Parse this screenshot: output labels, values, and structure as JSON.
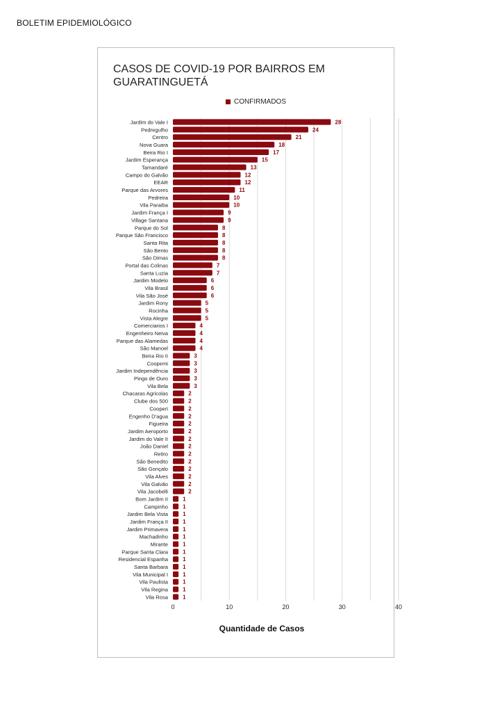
{
  "document": {
    "header": "BOLETIM EPIDEMIOLÓGICO"
  },
  "colors": {
    "bar": "#8b0a10",
    "bar_label": "#8b0a10",
    "grid": "#d9d9d9",
    "text": "#222222"
  },
  "chart_data": {
    "type": "bar",
    "orientation": "horizontal",
    "title": "CASOS DE COVID-19 POR BAIRROS EM GUARATINGUETÁ",
    "legend": {
      "position": "top",
      "entries": [
        "CONFIRMADOS"
      ]
    },
    "xlabel": "Quantidade de Casos",
    "ylabel": "",
    "xlim": [
      0,
      40
    ],
    "xticks": [
      0,
      10,
      20,
      30,
      40
    ],
    "grid": true,
    "data_labels": true,
    "categories": [
      "Jardim do Vale I",
      "Pedregulho",
      "Centro",
      "Nova Guara",
      "Beira Rio I",
      "Jardim Esperança",
      "Tamandaré",
      "Campo do Galvão",
      "EEAR",
      "Parque das Arvores",
      "Pedreira",
      "Vila Paraiba",
      "Jardim França I",
      "Village Santana",
      "Parque do Sol",
      "Parque São Francisco",
      "Santa Rita",
      "São Bento",
      "São Dimas",
      "Portal das Colinas",
      "Santa Luzia",
      "Jardim Modelo",
      "Vila Brasil",
      "Vila São José",
      "Jardim Rony",
      "Rocinha",
      "Vista Alegre",
      "Comerciarios I",
      "Engenheiro Neiva",
      "Parque das Alamedas",
      "São Manoel",
      "Beira Rio II",
      "Coopemi",
      "Jardim Independência",
      "Pingo de Ouro",
      "Vila Bela",
      "Chacaras Agricolas",
      "Clube dos 500",
      "Cooperi",
      "Engenho D'agua",
      "Figueira",
      "Jardim Aeroporto",
      "Jardim do Vale II",
      "João Daniel",
      "Retiro",
      "São Benedito",
      "São Gonçalo",
      "Vila Alves",
      "Vila Galvão",
      "Vila Jacobelli",
      "Bom Jardim II",
      "Campinho",
      "Jardim Bela Vista",
      "Jardim França II",
      "Jardim Primavera",
      "Machadinho",
      "Mirante",
      "Parque Santa Clara",
      "Residencial Espanha",
      "Santa Barbara",
      "Vila Municipal I",
      "Vila Paulista",
      "Vila Regina",
      "Vila Rosa"
    ],
    "series": [
      {
        "name": "CONFIRMADOS",
        "values": [
          28,
          24,
          21,
          18,
          17,
          15,
          13,
          12,
          12,
          11,
          10,
          10,
          9,
          9,
          8,
          8,
          8,
          8,
          8,
          7,
          7,
          6,
          6,
          6,
          5,
          5,
          5,
          4,
          4,
          4,
          4,
          3,
          3,
          3,
          3,
          3,
          2,
          2,
          2,
          2,
          2,
          2,
          2,
          2,
          2,
          2,
          2,
          2,
          2,
          2,
          1,
          1,
          1,
          1,
          1,
          1,
          1,
          1,
          1,
          1,
          1,
          1,
          1,
          1
        ]
      }
    ]
  }
}
